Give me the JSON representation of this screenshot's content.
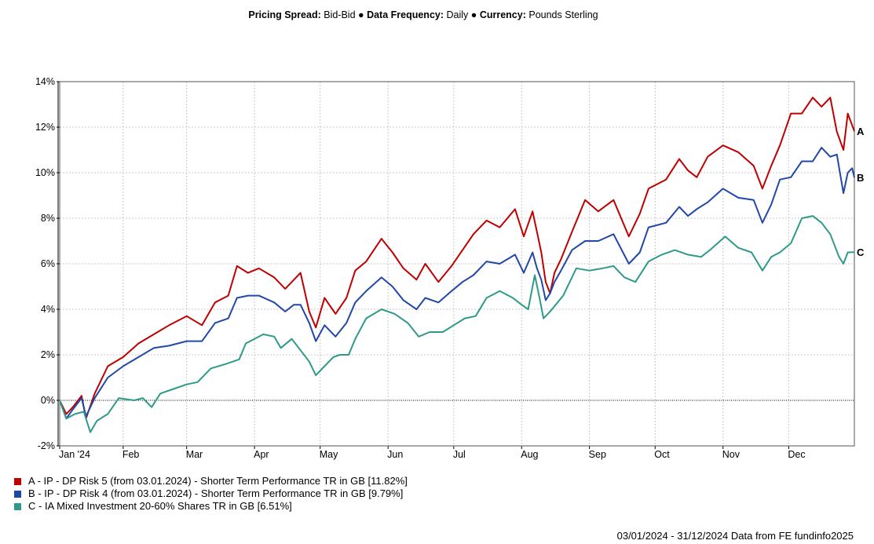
{
  "header": {
    "pricing_label": "Pricing Spread:",
    "pricing_value": "Bid-Bid",
    "frequency_label": "Data Frequency:",
    "frequency_value": "Daily",
    "currency_label": "Currency:",
    "currency_value": "Pounds Sterling",
    "separator": "●"
  },
  "footer": {
    "text": "03/01/2024 - 31/12/2024 Data from FE fundinfo2025"
  },
  "chart_data": {
    "type": "line",
    "x_range": [
      "2024-01-03",
      "2024-12-31"
    ],
    "ylim": [
      -2,
      14
    ],
    "y_ticks": [
      -2,
      0,
      2,
      4,
      6,
      8,
      10,
      12,
      14
    ],
    "y_tick_labels": [
      "-2%",
      "0%",
      "2%",
      "4%",
      "6%",
      "8%",
      "10%",
      "12%",
      "14%"
    ],
    "x_ticks": [
      {
        "date": "2024-01-03",
        "label": "Jan '24"
      },
      {
        "date": "2024-02-01",
        "label": "Feb"
      },
      {
        "date": "2024-03-01",
        "label": "Mar"
      },
      {
        "date": "2024-04-01",
        "label": "Apr"
      },
      {
        "date": "2024-05-01",
        "label": "May"
      },
      {
        "date": "2024-06-01",
        "label": "Jun"
      },
      {
        "date": "2024-07-01",
        "label": "Jul"
      },
      {
        "date": "2024-08-01",
        "label": "Aug"
      },
      {
        "date": "2024-09-01",
        "label": "Sep"
      },
      {
        "date": "2024-10-01",
        "label": "Oct"
      },
      {
        "date": "2024-11-01",
        "label": "Nov"
      },
      {
        "date": "2024-12-01",
        "label": "Dec"
      }
    ],
    "grid": true,
    "zero_line": true,
    "series": [
      {
        "name": "A - IP - DP Risk 5 (from 03.01.2024) - Shorter Term Performance TR in GB [11.82%]",
        "end_label": "A",
        "color": "#c00000",
        "points": [
          [
            "2024-01-03",
            0
          ],
          [
            "2024-01-06",
            -0.6
          ],
          [
            "2024-01-09",
            -0.3
          ],
          [
            "2024-01-13",
            0.2
          ],
          [
            "2024-01-15",
            -0.8
          ],
          [
            "2024-01-19",
            0.3
          ],
          [
            "2024-01-25",
            1.5
          ],
          [
            "2024-02-01",
            1.9
          ],
          [
            "2024-02-08",
            2.5
          ],
          [
            "2024-02-15",
            2.9
          ],
          [
            "2024-02-22",
            3.3
          ],
          [
            "2024-03-01",
            3.7
          ],
          [
            "2024-03-08",
            3.3
          ],
          [
            "2024-03-14",
            4.3
          ],
          [
            "2024-03-20",
            4.6
          ],
          [
            "2024-03-24",
            5.9
          ],
          [
            "2024-03-29",
            5.6
          ],
          [
            "2024-04-03",
            5.8
          ],
          [
            "2024-04-10",
            5.4
          ],
          [
            "2024-04-15",
            4.9
          ],
          [
            "2024-04-19",
            5.3
          ],
          [
            "2024-04-22",
            5.6
          ],
          [
            "2024-04-26",
            3.9
          ],
          [
            "2024-04-29",
            3.2
          ],
          [
            "2024-05-03",
            4.5
          ],
          [
            "2024-05-08",
            3.8
          ],
          [
            "2024-05-13",
            4.5
          ],
          [
            "2024-05-17",
            5.7
          ],
          [
            "2024-05-22",
            6.1
          ],
          [
            "2024-05-29",
            7.1
          ],
          [
            "2024-06-03",
            6.5
          ],
          [
            "2024-06-08",
            5.8
          ],
          [
            "2024-06-14",
            5.3
          ],
          [
            "2024-06-18",
            6.0
          ],
          [
            "2024-06-24",
            5.2
          ],
          [
            "2024-06-30",
            5.9
          ],
          [
            "2024-07-05",
            6.6
          ],
          [
            "2024-07-10",
            7.3
          ],
          [
            "2024-07-16",
            7.9
          ],
          [
            "2024-07-22",
            7.6
          ],
          [
            "2024-07-29",
            8.4
          ],
          [
            "2024-08-02",
            7.2
          ],
          [
            "2024-08-06",
            8.3
          ],
          [
            "2024-08-08",
            7.4
          ],
          [
            "2024-08-10",
            6.5
          ],
          [
            "2024-08-12",
            5.2
          ],
          [
            "2024-08-14",
            4.7
          ],
          [
            "2024-08-16",
            5.6
          ],
          [
            "2024-08-19",
            6.2
          ],
          [
            "2024-08-24",
            7.4
          ],
          [
            "2024-08-30",
            8.8
          ],
          [
            "2024-09-05",
            8.3
          ],
          [
            "2024-09-12",
            8.8
          ],
          [
            "2024-09-19",
            7.2
          ],
          [
            "2024-09-24",
            8.2
          ],
          [
            "2024-09-28",
            9.3
          ],
          [
            "2024-10-06",
            9.7
          ],
          [
            "2024-10-12",
            10.6
          ],
          [
            "2024-10-16",
            10.1
          ],
          [
            "2024-10-20",
            9.8
          ],
          [
            "2024-10-25",
            10.7
          ],
          [
            "2024-11-01",
            11.2
          ],
          [
            "2024-11-08",
            10.9
          ],
          [
            "2024-11-15",
            10.3
          ],
          [
            "2024-11-19",
            9.3
          ],
          [
            "2024-11-23",
            10.3
          ],
          [
            "2024-11-27",
            11.2
          ],
          [
            "2024-12-02",
            12.6
          ],
          [
            "2024-12-07",
            12.6
          ],
          [
            "2024-12-12",
            13.3
          ],
          [
            "2024-12-16",
            12.9
          ],
          [
            "2024-12-20",
            13.3
          ],
          [
            "2024-12-23",
            11.8
          ],
          [
            "2024-12-26",
            11.0
          ],
          [
            "2024-12-28",
            12.6
          ],
          [
            "2024-12-31",
            11.82
          ]
        ]
      },
      {
        "name": "B - IP - DP Risk 4 (from 03.01.2024) - Shorter Term Performance TR in GB [9.79%]",
        "end_label": "B",
        "color": "#2147a7",
        "points": [
          [
            "2024-01-03",
            0
          ],
          [
            "2024-01-06",
            -0.8
          ],
          [
            "2024-01-09",
            -0.4
          ],
          [
            "2024-01-13",
            0.1
          ],
          [
            "2024-01-15",
            -0.7
          ],
          [
            "2024-01-19",
            0.1
          ],
          [
            "2024-01-25",
            1.0
          ],
          [
            "2024-02-01",
            1.5
          ],
          [
            "2024-02-08",
            1.9
          ],
          [
            "2024-02-15",
            2.3
          ],
          [
            "2024-02-22",
            2.4
          ],
          [
            "2024-03-01",
            2.6
          ],
          [
            "2024-03-08",
            2.6
          ],
          [
            "2024-03-14",
            3.4
          ],
          [
            "2024-03-20",
            3.6
          ],
          [
            "2024-03-24",
            4.5
          ],
          [
            "2024-03-29",
            4.6
          ],
          [
            "2024-04-03",
            4.6
          ],
          [
            "2024-04-10",
            4.3
          ],
          [
            "2024-04-15",
            3.9
          ],
          [
            "2024-04-19",
            4.2
          ],
          [
            "2024-04-22",
            4.2
          ],
          [
            "2024-04-26",
            3.4
          ],
          [
            "2024-04-29",
            2.6
          ],
          [
            "2024-05-03",
            3.3
          ],
          [
            "2024-05-08",
            2.8
          ],
          [
            "2024-05-13",
            3.4
          ],
          [
            "2024-05-17",
            4.3
          ],
          [
            "2024-05-22",
            4.8
          ],
          [
            "2024-05-29",
            5.4
          ],
          [
            "2024-06-03",
            5.0
          ],
          [
            "2024-06-08",
            4.4
          ],
          [
            "2024-06-14",
            4.0
          ],
          [
            "2024-06-18",
            4.5
          ],
          [
            "2024-06-24",
            4.3
          ],
          [
            "2024-06-30",
            4.8
          ],
          [
            "2024-07-05",
            5.2
          ],
          [
            "2024-07-10",
            5.5
          ],
          [
            "2024-07-16",
            6.1
          ],
          [
            "2024-07-22",
            6.0
          ],
          [
            "2024-07-29",
            6.4
          ],
          [
            "2024-08-02",
            5.6
          ],
          [
            "2024-08-06",
            6.5
          ],
          [
            "2024-08-08",
            5.8
          ],
          [
            "2024-08-10",
            5.3
          ],
          [
            "2024-08-12",
            4.4
          ],
          [
            "2024-08-14",
            4.7
          ],
          [
            "2024-08-16",
            5.2
          ],
          [
            "2024-08-19",
            5.7
          ],
          [
            "2024-08-24",
            6.6
          ],
          [
            "2024-08-30",
            7.0
          ],
          [
            "2024-09-05",
            7.0
          ],
          [
            "2024-09-12",
            7.3
          ],
          [
            "2024-09-19",
            6.0
          ],
          [
            "2024-09-24",
            6.5
          ],
          [
            "2024-09-28",
            7.6
          ],
          [
            "2024-10-06",
            7.8
          ],
          [
            "2024-10-12",
            8.5
          ],
          [
            "2024-10-16",
            8.1
          ],
          [
            "2024-10-20",
            8.4
          ],
          [
            "2024-10-25",
            8.7
          ],
          [
            "2024-11-01",
            9.3
          ],
          [
            "2024-11-08",
            8.9
          ],
          [
            "2024-11-15",
            8.8
          ],
          [
            "2024-11-19",
            7.8
          ],
          [
            "2024-11-23",
            8.6
          ],
          [
            "2024-11-27",
            9.7
          ],
          [
            "2024-12-02",
            9.8
          ],
          [
            "2024-12-07",
            10.5
          ],
          [
            "2024-12-12",
            10.5
          ],
          [
            "2024-12-16",
            11.1
          ],
          [
            "2024-12-20",
            10.7
          ],
          [
            "2024-12-23",
            10.8
          ],
          [
            "2024-12-26",
            9.1
          ],
          [
            "2024-12-28",
            10.0
          ],
          [
            "2024-12-30",
            10.2
          ],
          [
            "2024-12-31",
            9.79
          ]
        ]
      },
      {
        "name": "C - IA Mixed Investment 20-60% Shares TR in GB [6.51%]",
        "end_label": "C",
        "color": "#2e9a88",
        "points": [
          [
            "2024-01-03",
            0
          ],
          [
            "2024-01-06",
            -0.8
          ],
          [
            "2024-01-10",
            -0.6
          ],
          [
            "2024-01-14",
            -0.5
          ],
          [
            "2024-01-17",
            -1.4
          ],
          [
            "2024-01-20",
            -0.9
          ],
          [
            "2024-01-25",
            -0.6
          ],
          [
            "2024-01-30",
            0.1
          ],
          [
            "2024-02-06",
            0.0
          ],
          [
            "2024-02-10",
            0.1
          ],
          [
            "2024-02-14",
            -0.3
          ],
          [
            "2024-02-18",
            0.3
          ],
          [
            "2024-02-24",
            0.5
          ],
          [
            "2024-03-01",
            0.7
          ],
          [
            "2024-03-06",
            0.8
          ],
          [
            "2024-03-12",
            1.4
          ],
          [
            "2024-03-19",
            1.6
          ],
          [
            "2024-03-25",
            1.8
          ],
          [
            "2024-03-28",
            2.5
          ],
          [
            "2024-04-01",
            2.7
          ],
          [
            "2024-04-05",
            2.9
          ],
          [
            "2024-04-10",
            2.8
          ],
          [
            "2024-04-13",
            2.3
          ],
          [
            "2024-04-18",
            2.7
          ],
          [
            "2024-04-22",
            2.2
          ],
          [
            "2024-04-26",
            1.7
          ],
          [
            "2024-04-29",
            1.1
          ],
          [
            "2024-05-03",
            1.5
          ],
          [
            "2024-05-07",
            1.9
          ],
          [
            "2024-05-10",
            2.0
          ],
          [
            "2024-05-14",
            2.0
          ],
          [
            "2024-05-17",
            2.7
          ],
          [
            "2024-05-22",
            3.6
          ],
          [
            "2024-05-29",
            4.0
          ],
          [
            "2024-06-04",
            3.8
          ],
          [
            "2024-06-10",
            3.4
          ],
          [
            "2024-06-15",
            2.8
          ],
          [
            "2024-06-20",
            3.0
          ],
          [
            "2024-06-26",
            3.0
          ],
          [
            "2024-07-01",
            3.3
          ],
          [
            "2024-07-06",
            3.6
          ],
          [
            "2024-07-11",
            3.7
          ],
          [
            "2024-07-16",
            4.5
          ],
          [
            "2024-07-22",
            4.8
          ],
          [
            "2024-07-28",
            4.5
          ],
          [
            "2024-08-01",
            4.2
          ],
          [
            "2024-08-04",
            4.0
          ],
          [
            "2024-08-07",
            5.5
          ],
          [
            "2024-08-09",
            4.6
          ],
          [
            "2024-08-11",
            3.6
          ],
          [
            "2024-08-14",
            3.9
          ],
          [
            "2024-08-20",
            4.6
          ],
          [
            "2024-08-26",
            5.8
          ],
          [
            "2024-09-01",
            5.7
          ],
          [
            "2024-09-07",
            5.8
          ],
          [
            "2024-09-12",
            5.9
          ],
          [
            "2024-09-17",
            5.4
          ],
          [
            "2024-09-22",
            5.2
          ],
          [
            "2024-09-28",
            6.1
          ],
          [
            "2024-10-04",
            6.4
          ],
          [
            "2024-10-10",
            6.6
          ],
          [
            "2024-10-16",
            6.4
          ],
          [
            "2024-10-22",
            6.3
          ],
          [
            "2024-10-26",
            6.6
          ],
          [
            "2024-11-02",
            7.2
          ],
          [
            "2024-11-08",
            6.7
          ],
          [
            "2024-11-14",
            6.5
          ],
          [
            "2024-11-19",
            5.7
          ],
          [
            "2024-11-23",
            6.3
          ],
          [
            "2024-11-27",
            6.5
          ],
          [
            "2024-12-02",
            6.9
          ],
          [
            "2024-12-07",
            8.0
          ],
          [
            "2024-12-12",
            8.1
          ],
          [
            "2024-12-16",
            7.8
          ],
          [
            "2024-12-20",
            7.3
          ],
          [
            "2024-12-24",
            6.3
          ],
          [
            "2024-12-26",
            6.0
          ],
          [
            "2024-12-28",
            6.5
          ],
          [
            "2024-12-31",
            6.51
          ]
        ]
      }
    ]
  }
}
